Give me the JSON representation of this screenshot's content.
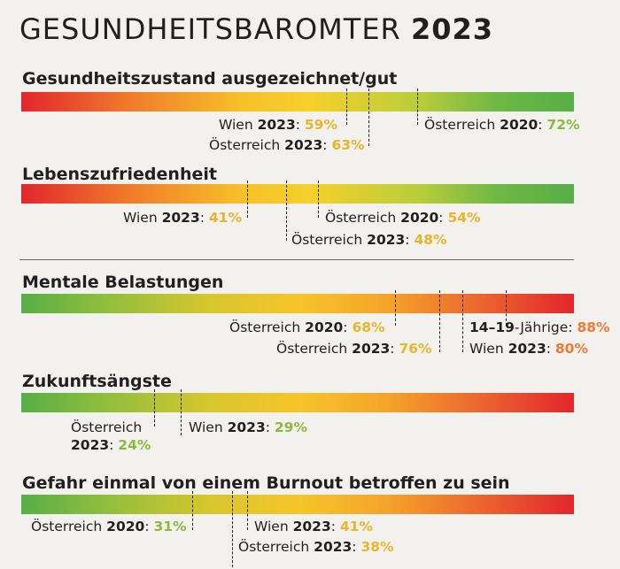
{
  "title": {
    "main": "GESUNDHEITSBAROMTER",
    "year": "2023"
  },
  "sections": [
    {
      "title": "Gesundheitszustand ausgezeichnet/gut",
      "scale": "red-to-green",
      "markers": [
        {
          "region": "Wien",
          "year": "2023",
          "value": "59%",
          "color": "#e9b52b"
        },
        {
          "region": "Österreich",
          "year": "2023",
          "value": "63%",
          "color": "#e9b52b"
        },
        {
          "region": "Österreich",
          "year": "2020",
          "value": "72%",
          "color": "#8cba3d"
        }
      ]
    },
    {
      "title": "Lebenszufriedenheit",
      "scale": "red-to-green",
      "markers": [
        {
          "region": "Wien",
          "year": "2023",
          "value": "41%",
          "color": "#e9b52b"
        },
        {
          "region": "Österreich",
          "year": "2023",
          "value": "48%",
          "color": "#e9b52b"
        },
        {
          "region": "Österreich",
          "year": "2020",
          "value": "54%",
          "color": "#e9b52b"
        }
      ]
    },
    {
      "title": "Mentale Belastungen",
      "scale": "green-to-red",
      "markers": [
        {
          "region": "Österreich",
          "year": "2020",
          "value": "68%",
          "color": "#e9b52b"
        },
        {
          "region": "Österreich",
          "year": "2023",
          "value": "76%",
          "color": "#e9b52b"
        },
        {
          "region": "Wien",
          "year": "2023",
          "value": "80%",
          "color": "#ef7a36"
        },
        {
          "region": "-Jährige",
          "year": "14–19",
          "value": "88%",
          "color": "#ef7a36"
        }
      ]
    },
    {
      "title": "Zukunftsängste",
      "scale": "green-to-red",
      "markers": [
        {
          "region": "Österreich",
          "year": "2023",
          "value": "24%",
          "color": "#8cba3d"
        },
        {
          "region": "Wien",
          "year": "2023",
          "value": "29%",
          "color": "#8cba3d"
        }
      ]
    },
    {
      "title": "Gefahr einmal von einem Burnout betroffen zu sein",
      "scale": "green-to-red",
      "markers": [
        {
          "region": "Österreich",
          "year": "2020",
          "value": "31%",
          "color": "#8cba3d"
        },
        {
          "region": "Österreich",
          "year": "2023",
          "value": "38%",
          "color": "#e9b52b"
        },
        {
          "region": "Wien",
          "year": "2023",
          "value": "41%",
          "color": "#e9b52b"
        }
      ]
    }
  ]
}
